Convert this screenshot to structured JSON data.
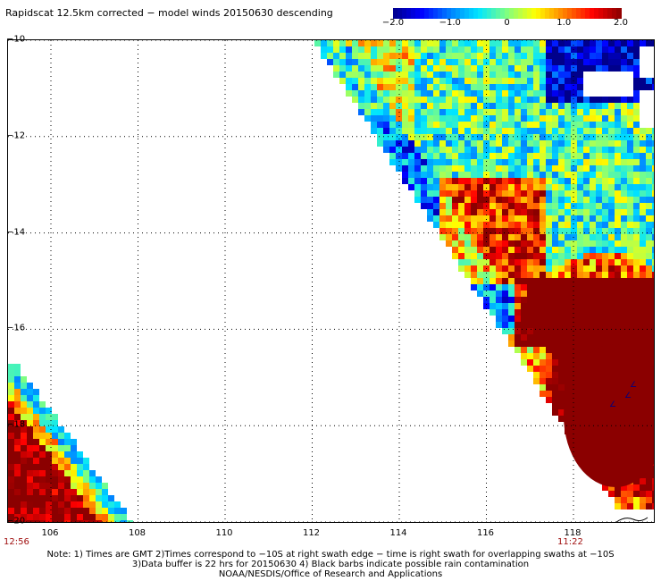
{
  "title": "Rapidscat 12.5km corrected − model winds 20150630 descending",
  "colorbar": {
    "ticks": [
      {
        "label": "−2.0",
        "value": -2.0
      },
      {
        "label": "−1.0",
        "value": -1.0
      },
      {
        "label": "0",
        "value": 0
      },
      {
        "label": "1.0",
        "value": 1.0
      },
      {
        "label": "2.0",
        "value": 2.0
      }
    ],
    "colors": [
      "#00008b",
      "#0000ff",
      "#0080ff",
      "#00e5ff",
      "#80ff80",
      "#ffff00",
      "#ff8000",
      "#ff0000",
      "#8b0000"
    ]
  },
  "axes": {
    "lat_labels": [
      "−10",
      "−12",
      "−14",
      "−16",
      "−18",
      "−20"
    ],
    "lat_values": [
      -10,
      -12,
      -14,
      -16,
      -18,
      -20
    ],
    "lon_labels": [
      "106",
      "108",
      "110",
      "112",
      "114",
      "116",
      "118"
    ],
    "lon_values": [
      106,
      108,
      110,
      112,
      114,
      116,
      118
    ],
    "lon_range": [
      105,
      120
    ],
    "lat_range": [
      -10,
      -20
    ]
  },
  "times": {
    "left": "12:56",
    "right": "11:22"
  },
  "notes": {
    "line1": "Note: 1) Times are GMT 2)Times correspond to −10S at right swath edge − time is right swath for overlapping swaths at −10S",
    "line2": "3)Data buffer is 22 hrs for 20150630 4) Black barbs indicate possible rain contamination",
    "line3": "NOAA/NESDIS/Office of Research and Applications"
  }
}
